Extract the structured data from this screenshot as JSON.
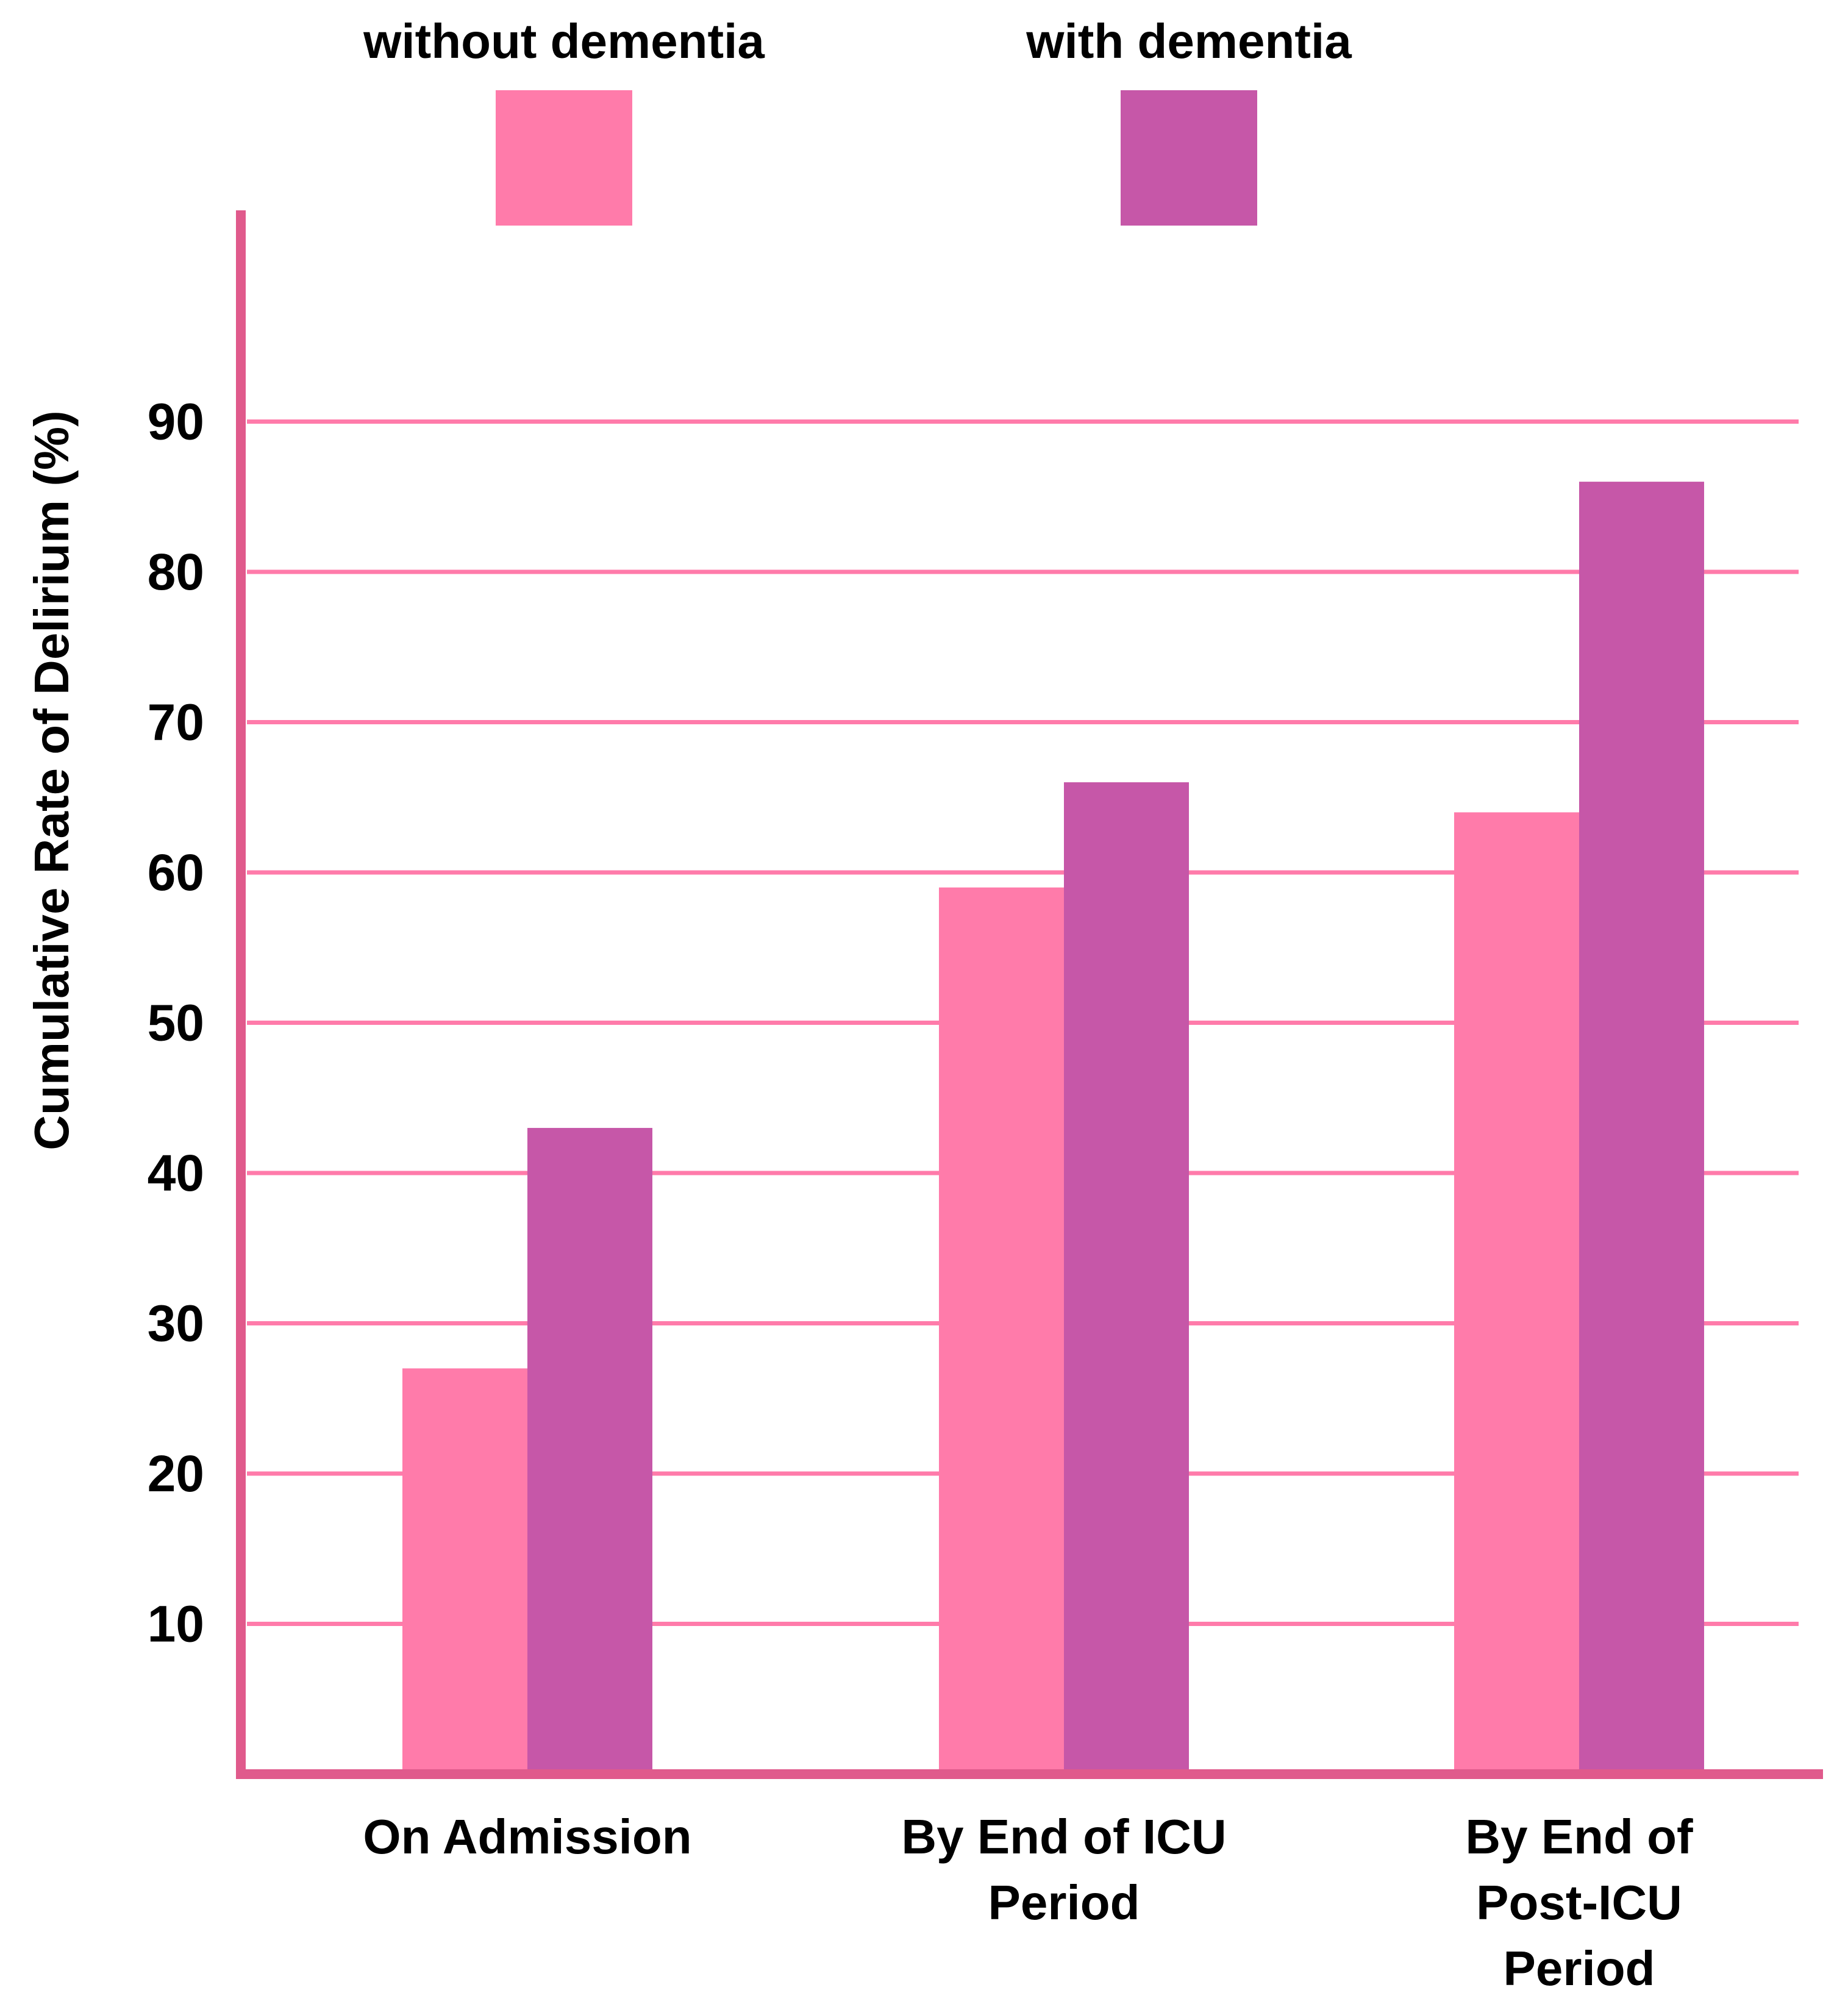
{
  "chart_data": {
    "type": "bar",
    "title": "",
    "xlabel": "",
    "ylabel": "Cumulative Rate of Delirium (%)",
    "ylim": [
      0,
      100
    ],
    "yticks": [
      10,
      20,
      30,
      40,
      50,
      60,
      70,
      80,
      90
    ],
    "grid": true,
    "legend_position": "top",
    "categories": [
      [
        "On Admission"
      ],
      [
        "By End of ICU",
        "Period"
      ],
      [
        "By End of",
        "Post-ICU",
        "Period"
      ]
    ],
    "series": [
      {
        "name": "without dementia",
        "color": "#FF7BAA",
        "values": [
          27,
          59,
          64
        ]
      },
      {
        "name": "with dementia",
        "color": "#C657A8",
        "values": [
          43,
          66,
          86
        ]
      }
    ],
    "colors": {
      "axis": "#E05A8C",
      "grid": "#FF7BAA"
    }
  }
}
